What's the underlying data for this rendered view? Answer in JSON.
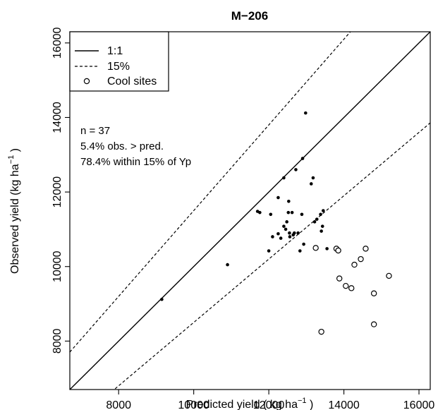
{
  "chart_data": {
    "type": "scatter",
    "title": "M−206",
    "xlabel": {
      "main": "Predicted yield ( kg ha",
      "sup": "−1",
      "tail": " )"
    },
    "ylabel": {
      "main": "Observed yield (kg ha",
      "sup": "−1",
      "tail": " )"
    },
    "xlim": [
      6700,
      16300
    ],
    "ylim": [
      6700,
      16300
    ],
    "xticks": [
      8000,
      10000,
      12000,
      14000,
      16000
    ],
    "yticks": [
      8000,
      10000,
      12000,
      14000,
      16000
    ],
    "legend": {
      "position": "top-left",
      "entries": [
        {
          "label": "1:1",
          "style": "solid-line"
        },
        {
          "label": "15%",
          "style": "dashed-line"
        },
        {
          "label": "Cool sites",
          "style": "open-circle"
        }
      ]
    },
    "annotations": [
      "n = 37",
      "5.4% obs. > pred.",
      "78.4% within 15% of Yp"
    ],
    "reference_lines": [
      {
        "name": "1:1",
        "slope": 1.0,
        "style": "solid"
      },
      {
        "name": "15% upper",
        "slope": 1.15,
        "style": "dashed"
      },
      {
        "name": "15% lower",
        "slope": 0.85,
        "style": "dashed"
      }
    ],
    "series": [
      {
        "name": "",
        "marker": "filled-dot",
        "points": [
          [
            9150,
            9120
          ],
          [
            10900,
            10050
          ],
          [
            11700,
            11480
          ],
          [
            11760,
            11450
          ],
          [
            12000,
            10420
          ],
          [
            12050,
            11400
          ],
          [
            12100,
            10800
          ],
          [
            12250,
            10880
          ],
          [
            12250,
            11850
          ],
          [
            12320,
            10760
          ],
          [
            12400,
            12380
          ],
          [
            12400,
            11080
          ],
          [
            12450,
            11000
          ],
          [
            12480,
            11200
          ],
          [
            12520,
            11450
          ],
          [
            12530,
            11750
          ],
          [
            12550,
            10900
          ],
          [
            12560,
            10800
          ],
          [
            12620,
            11450
          ],
          [
            12650,
            10850
          ],
          [
            12680,
            10900
          ],
          [
            12720,
            12600
          ],
          [
            12780,
            10900
          ],
          [
            12830,
            10420
          ],
          [
            12880,
            11400
          ],
          [
            12900,
            12900
          ],
          [
            12930,
            10600
          ],
          [
            12980,
            14120
          ],
          [
            13130,
            12220
          ],
          [
            13180,
            12380
          ],
          [
            13220,
            11200
          ],
          [
            13280,
            11270
          ],
          [
            13380,
            11400
          ],
          [
            13400,
            10950
          ],
          [
            13430,
            11080
          ],
          [
            13550,
            10480
          ],
          [
            13450,
            11500
          ]
        ]
      },
      {
        "name": "Cool sites",
        "marker": "open-circle",
        "points": [
          [
            13250,
            10500
          ],
          [
            13400,
            8250
          ],
          [
            13800,
            10480
          ],
          [
            13850,
            10430
          ],
          [
            13880,
            9680
          ],
          [
            14050,
            9480
          ],
          [
            14200,
            9420
          ],
          [
            14280,
            10050
          ],
          [
            14450,
            10200
          ],
          [
            14580,
            10480
          ],
          [
            14800,
            9280
          ],
          [
            14800,
            8450
          ],
          [
            15200,
            9750
          ]
        ]
      }
    ]
  }
}
